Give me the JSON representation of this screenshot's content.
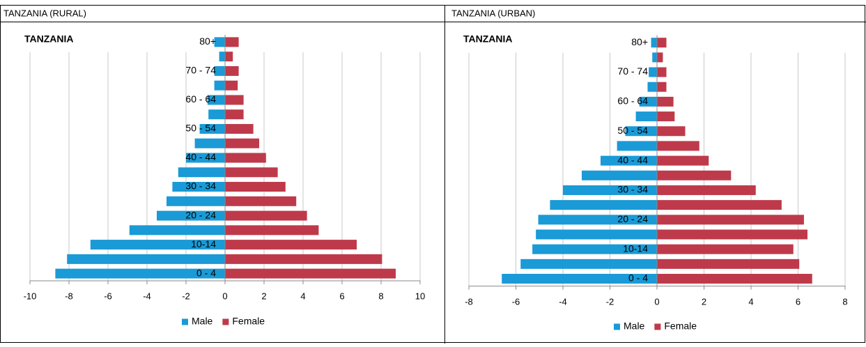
{
  "headers": [
    "TANZANIA (RURAL)",
    "TANZANIA (URBAN)"
  ],
  "chart_data": [
    {
      "type": "bar",
      "orientation": "horizontal",
      "title": "TANZANIA",
      "categories": [
        "0 - 4",
        null,
        "10-14",
        null,
        "20 - 24",
        null,
        "30 - 34",
        null,
        "40 - 44",
        null,
        "50 - 54",
        null,
        "60 - 64",
        null,
        "70 - 74",
        null,
        "80+"
      ],
      "series": [
        {
          "name": "Male",
          "color": "#1a9ad6",
          "values": [
            -8.7,
            -8.1,
            -6.9,
            -4.9,
            -3.5,
            -3.0,
            -2.7,
            -2.4,
            -2.0,
            -1.55,
            -1.3,
            -0.85,
            -0.9,
            -0.55,
            -0.55,
            -0.3,
            -0.55
          ]
        },
        {
          "name": "Female",
          "color": "#be3a4a",
          "values": [
            8.75,
            8.05,
            6.75,
            4.8,
            4.2,
            3.65,
            3.1,
            2.7,
            2.1,
            1.75,
            1.45,
            0.95,
            0.95,
            0.65,
            0.7,
            0.4,
            0.7
          ]
        }
      ],
      "xlim": [
        -10,
        10
      ],
      "xticks": [
        -10,
        -8,
        -6,
        -4,
        -2,
        0,
        2,
        4,
        6,
        8,
        10
      ],
      "grid": true,
      "legend": "bottom"
    },
    {
      "type": "bar",
      "orientation": "horizontal",
      "title": "TANZANIA",
      "categories": [
        "0 - 4",
        null,
        "10-14",
        null,
        "20 - 24",
        null,
        "30 - 34",
        null,
        "40 - 44",
        null,
        "50 - 54",
        null,
        "60 - 64",
        null,
        "70 - 74",
        null,
        "80+"
      ],
      "series": [
        {
          "name": "Male",
          "color": "#1a9ad6",
          "values": [
            -6.6,
            -5.8,
            -5.3,
            -5.15,
            -5.05,
            -4.55,
            -4.0,
            -3.2,
            -2.4,
            -1.7,
            -1.35,
            -0.9,
            -0.75,
            -0.4,
            -0.35,
            -0.2,
            -0.25
          ]
        },
        {
          "name": "Female",
          "color": "#be3a4a",
          "values": [
            6.6,
            6.05,
            5.8,
            6.4,
            6.25,
            5.3,
            4.2,
            3.15,
            2.2,
            1.8,
            1.2,
            0.75,
            0.7,
            0.4,
            0.4,
            0.25,
            0.4
          ]
        }
      ],
      "xlim": [
        -8,
        8
      ],
      "xticks": [
        -8,
        -6,
        -4,
        -2,
        0,
        2,
        4,
        6,
        8
      ],
      "grid": true,
      "legend": "bottom"
    }
  ]
}
